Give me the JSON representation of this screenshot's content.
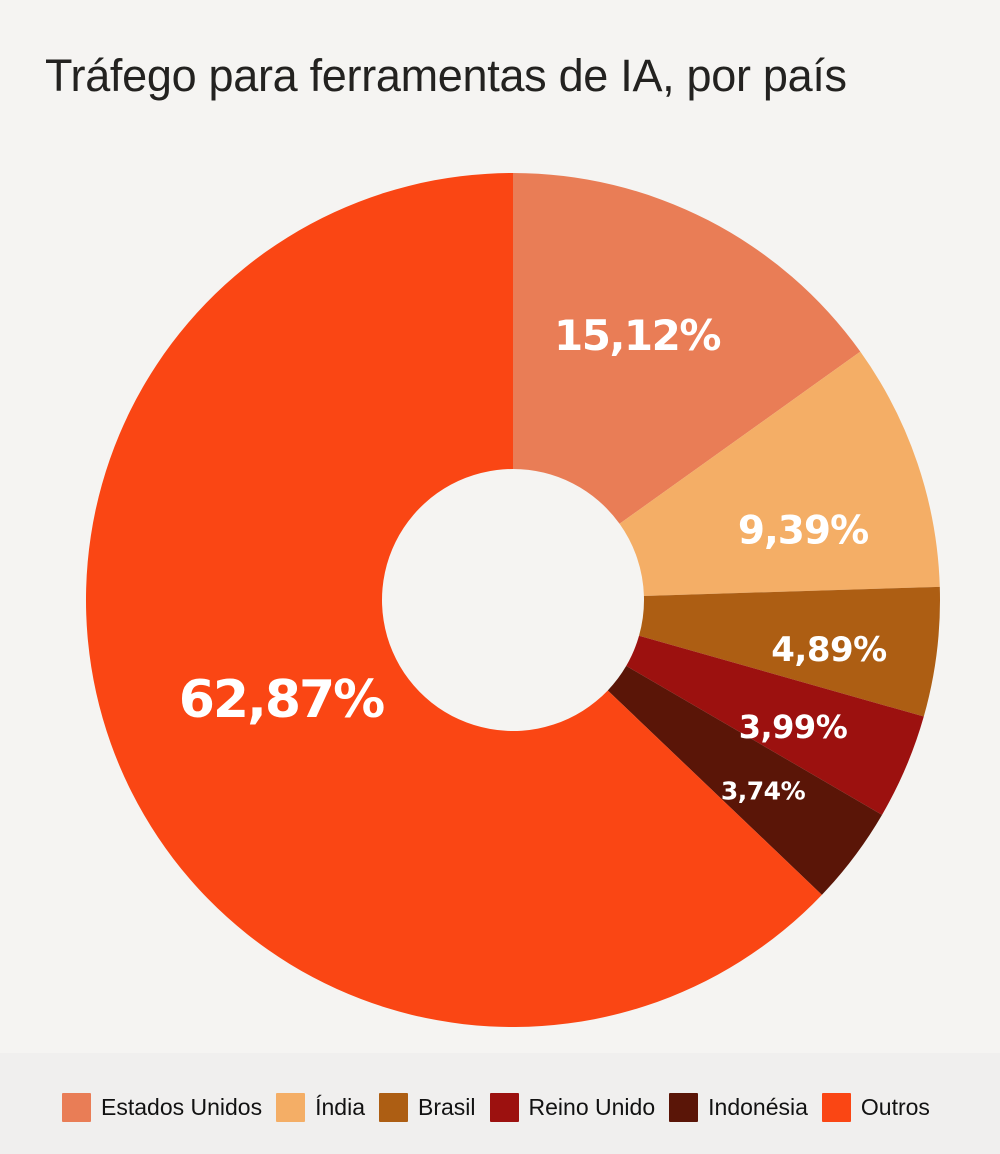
{
  "chart_data": {
    "type": "pie",
    "subtype": "donut",
    "title": "Tráfego para ferramentas de IA, por país",
    "unit": "%",
    "total": 100,
    "start_angle_deg": 0,
    "direction": "clockwise",
    "legend_position": "bottom",
    "value_label_color": "#FFFFFF",
    "series": [
      {
        "id": "estados-unidos",
        "name": "Estados Unidos",
        "value": 15.12,
        "label": "15,12%",
        "color": "#E97D56"
      },
      {
        "id": "india",
        "name": "Índia",
        "value": 9.39,
        "label": "9,39%",
        "color": "#F4AE66"
      },
      {
        "id": "brasil",
        "name": "Brasil",
        "value": 4.89,
        "label": "4,89%",
        "color": "#AD5E13"
      },
      {
        "id": "reino-unido",
        "name": "Reino Unido",
        "value": 3.99,
        "label": "3,99%",
        "color": "#9C110F"
      },
      {
        "id": "indonesia",
        "name": "Indonésia",
        "value": 3.74,
        "label": "3,74%",
        "color": "#5A1507"
      },
      {
        "id": "outros",
        "name": "Outros",
        "value": 62.87,
        "label": "62,87%",
        "color": "#FA4614"
      }
    ],
    "colors": {
      "background": "#F5F4F2",
      "legend_background": "#F0EFEE",
      "title_text": "#232220",
      "legend_text": "#121212"
    }
  }
}
